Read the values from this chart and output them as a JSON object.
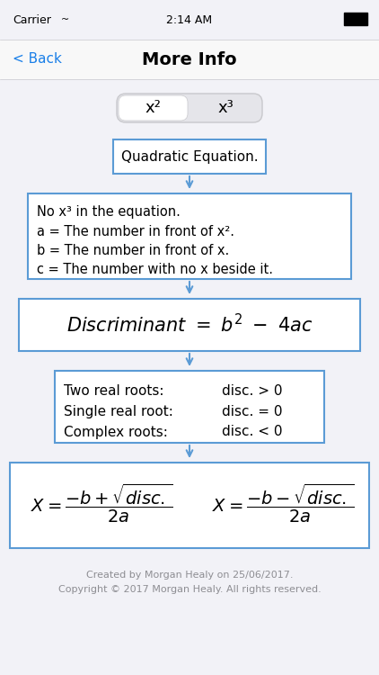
{
  "bg_color": "#f2f2f7",
  "box_color": "#5b9bd5",
  "box_face": "#ffffff",
  "title": "More Info",
  "status_carrier": "Carrier",
  "status_time": "2:14 AM",
  "back_text": "< Back",
  "back_color": "#1a7fe8",
  "tab1": "x²",
  "tab2": "x³",
  "box1_text": "Quadratic Equation.",
  "box2_lines": [
    "No x³ in the equation.",
    "a = The number in front of x².",
    "b = The number in front of x.",
    "c = The number with no x beside it."
  ],
  "box3_text": "$\\mathit{Discriminant\\ =\\ b^2\\ -\\ 4ac}$",
  "box4_lines": [
    [
      "Two real roots:",
      "disc. > 0"
    ],
    [
      "Single real root:",
      "disc. = 0"
    ],
    [
      "Complex roots:",
      "disc. < 0"
    ]
  ],
  "box5_formula1": "$X = \\dfrac{-b + \\sqrt{disc.}}{2a}$",
  "box5_formula2": "$X = \\dfrac{-b - \\sqrt{disc.}}{2a}$",
  "footer1": "Created by Morgan Healy on 25/06/2017.",
  "footer2": "Copyright © 2017 Morgan Healy. All rights reserved.",
  "footer_color": "#8e8e93"
}
